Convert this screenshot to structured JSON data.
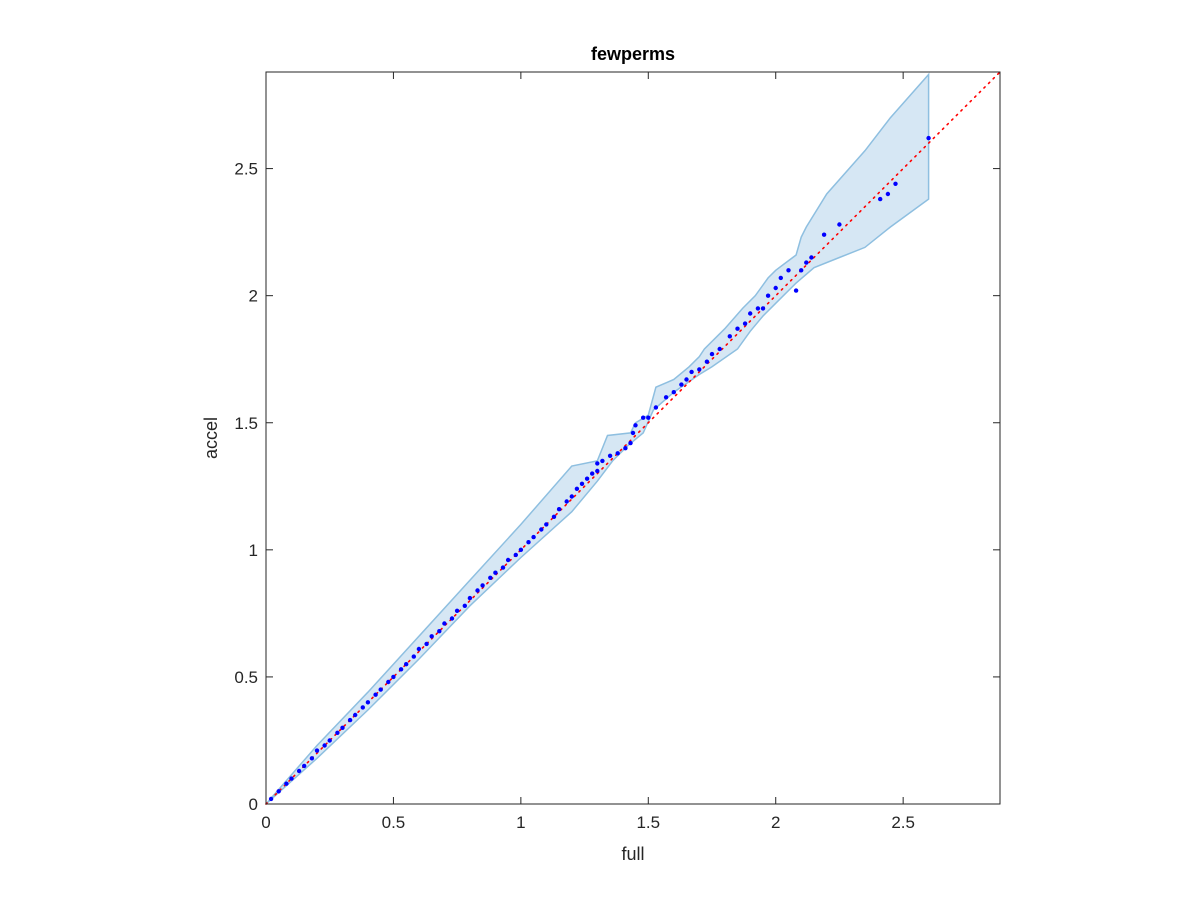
{
  "chart_data": {
    "type": "scatter",
    "title": "fewperms",
    "xlabel": "full",
    "ylabel": "accel",
    "xlim": [
      0,
      2.88
    ],
    "ylim": [
      0,
      2.88
    ],
    "xticks": [
      0,
      0.5,
      1,
      1.5,
      2,
      2.5
    ],
    "yticks": [
      0,
      0.5,
      1,
      1.5,
      2,
      2.5
    ],
    "xtick_labels": [
      "0",
      "0.5",
      "1",
      "1.5",
      "2",
      "2.5"
    ],
    "ytick_labels": [
      "0",
      "0.5",
      "1",
      "1.5",
      "2",
      "2.5"
    ],
    "grid": false,
    "reference_line": {
      "style": "dotted",
      "color": "#ff0000",
      "x": [
        0,
        2.88
      ],
      "y": [
        0,
        2.88
      ]
    },
    "confidence_band": {
      "fill_color": "#d6e7f4",
      "edge_color": "#8ebfe0",
      "upper": [
        [
          0,
          0
        ],
        [
          0.2,
          0.23
        ],
        [
          0.4,
          0.44
        ],
        [
          0.6,
          0.66
        ],
        [
          0.8,
          0.88
        ],
        [
          1.0,
          1.1
        ],
        [
          1.2,
          1.33
        ],
        [
          1.3,
          1.35
        ],
        [
          1.34,
          1.45
        ],
        [
          1.43,
          1.46
        ],
        [
          1.45,
          1.5
        ],
        [
          1.5,
          1.53
        ],
        [
          1.53,
          1.64
        ],
        [
          1.6,
          1.67
        ],
        [
          1.66,
          1.72
        ],
        [
          1.7,
          1.76
        ],
        [
          1.72,
          1.79
        ],
        [
          1.8,
          1.87
        ],
        [
          1.87,
          1.95
        ],
        [
          1.92,
          2.0
        ],
        [
          1.97,
          2.07
        ],
        [
          2.0,
          2.1
        ],
        [
          2.04,
          2.13
        ],
        [
          2.08,
          2.16
        ],
        [
          2.1,
          2.23
        ],
        [
          2.12,
          2.27
        ],
        [
          2.2,
          2.4
        ],
        [
          2.35,
          2.57
        ],
        [
          2.45,
          2.7
        ],
        [
          2.6,
          2.87
        ]
      ],
      "lower": [
        [
          2.6,
          2.38
        ],
        [
          2.45,
          2.27
        ],
        [
          2.35,
          2.19
        ],
        [
          2.25,
          2.15
        ],
        [
          2.15,
          2.11
        ],
        [
          2.08,
          2.05
        ],
        [
          2.0,
          1.97
        ],
        [
          1.95,
          1.92
        ],
        [
          1.9,
          1.86
        ],
        [
          1.85,
          1.79
        ],
        [
          1.75,
          1.72
        ],
        [
          1.7,
          1.69
        ],
        [
          1.6,
          1.62
        ],
        [
          1.52,
          1.55
        ],
        [
          1.48,
          1.46
        ],
        [
          1.42,
          1.41
        ],
        [
          1.36,
          1.35
        ],
        [
          1.3,
          1.27
        ],
        [
          1.2,
          1.15
        ],
        [
          1.0,
          0.97
        ],
        [
          0.8,
          0.78
        ],
        [
          0.6,
          0.57
        ],
        [
          0.4,
          0.37
        ],
        [
          0.2,
          0.18
        ],
        [
          0,
          0
        ]
      ]
    },
    "series": [
      {
        "color": "#0000ff",
        "points": [
          [
            0.02,
            0.02
          ],
          [
            0.05,
            0.05
          ],
          [
            0.08,
            0.08
          ],
          [
            0.1,
            0.1
          ],
          [
            0.13,
            0.13
          ],
          [
            0.15,
            0.15
          ],
          [
            0.18,
            0.18
          ],
          [
            0.2,
            0.21
          ],
          [
            0.23,
            0.23
          ],
          [
            0.25,
            0.25
          ],
          [
            0.28,
            0.28
          ],
          [
            0.3,
            0.3
          ],
          [
            0.33,
            0.33
          ],
          [
            0.35,
            0.35
          ],
          [
            0.38,
            0.38
          ],
          [
            0.4,
            0.4
          ],
          [
            0.43,
            0.43
          ],
          [
            0.45,
            0.45
          ],
          [
            0.48,
            0.48
          ],
          [
            0.5,
            0.5
          ],
          [
            0.53,
            0.53
          ],
          [
            0.55,
            0.55
          ],
          [
            0.58,
            0.58
          ],
          [
            0.6,
            0.61
          ],
          [
            0.63,
            0.63
          ],
          [
            0.65,
            0.66
          ],
          [
            0.68,
            0.68
          ],
          [
            0.7,
            0.71
          ],
          [
            0.73,
            0.73
          ],
          [
            0.75,
            0.76
          ],
          [
            0.78,
            0.78
          ],
          [
            0.8,
            0.81
          ],
          [
            0.83,
            0.84
          ],
          [
            0.85,
            0.86
          ],
          [
            0.88,
            0.89
          ],
          [
            0.9,
            0.91
          ],
          [
            0.93,
            0.93
          ],
          [
            0.95,
            0.96
          ],
          [
            0.98,
            0.98
          ],
          [
            1.0,
            1.0
          ],
          [
            1.03,
            1.03
          ],
          [
            1.05,
            1.05
          ],
          [
            1.08,
            1.08
          ],
          [
            1.1,
            1.1
          ],
          [
            1.13,
            1.13
          ],
          [
            1.15,
            1.16
          ],
          [
            1.18,
            1.19
          ],
          [
            1.2,
            1.21
          ],
          [
            1.22,
            1.24
          ],
          [
            1.24,
            1.26
          ],
          [
            1.26,
            1.28
          ],
          [
            1.28,
            1.3
          ],
          [
            1.3,
            1.31
          ],
          [
            1.3,
            1.34
          ],
          [
            1.32,
            1.35
          ],
          [
            1.35,
            1.37
          ],
          [
            1.38,
            1.38
          ],
          [
            1.41,
            1.4
          ],
          [
            1.43,
            1.42
          ],
          [
            1.44,
            1.46
          ],
          [
            1.45,
            1.49
          ],
          [
            1.48,
            1.52
          ],
          [
            1.5,
            1.52
          ],
          [
            1.53,
            1.56
          ],
          [
            1.57,
            1.6
          ],
          [
            1.6,
            1.62
          ],
          [
            1.63,
            1.65
          ],
          [
            1.65,
            1.67
          ],
          [
            1.67,
            1.7
          ],
          [
            1.7,
            1.71
          ],
          [
            1.73,
            1.74
          ],
          [
            1.75,
            1.77
          ],
          [
            1.78,
            1.79
          ],
          [
            1.82,
            1.84
          ],
          [
            1.85,
            1.87
          ],
          [
            1.88,
            1.89
          ],
          [
            1.9,
            1.93
          ],
          [
            1.93,
            1.95
          ],
          [
            1.95,
            1.95
          ],
          [
            1.97,
            2.0
          ],
          [
            2.0,
            2.03
          ],
          [
            2.02,
            2.07
          ],
          [
            2.05,
            2.1
          ],
          [
            2.08,
            2.02
          ],
          [
            2.1,
            2.1
          ],
          [
            2.12,
            2.13
          ],
          [
            2.14,
            2.15
          ],
          [
            2.19,
            2.24
          ],
          [
            2.25,
            2.28
          ],
          [
            2.41,
            2.38
          ],
          [
            2.44,
            2.4
          ],
          [
            2.47,
            2.44
          ],
          [
            2.6,
            2.62
          ]
        ]
      }
    ]
  }
}
